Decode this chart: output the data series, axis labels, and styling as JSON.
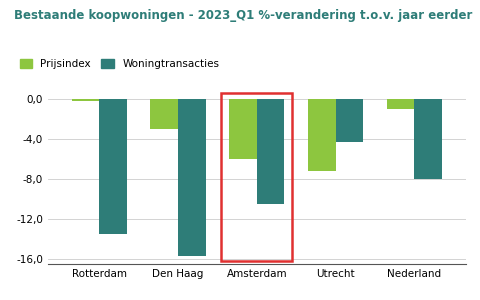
{
  "title": "Bestaande koopwoningen - 2023_Q1 %-verandering t.o.v. jaar eerder",
  "categories": [
    "Rotterdam",
    "Den Haag",
    "Amsterdam",
    "Utrecht",
    "Nederland"
  ],
  "prijsindex": [
    -0.2,
    -3.0,
    -6.0,
    -7.2,
    -1.0
  ],
  "woningtransacties": [
    -13.5,
    -15.7,
    -10.5,
    -4.3,
    -8.0
  ],
  "color_prijsindex": "#8dc63f",
  "color_woningtransacties": "#2e7d78",
  "title_color": "#2e7d78",
  "legend_label_prijs": "Prijsindex",
  "legend_label_trans": "Woningtransacties",
  "ylim": [
    -16.5,
    1.5
  ],
  "yticks": [
    0.0,
    -4.0,
    -8.0,
    -12.0,
    -16.0
  ],
  "highlight_city": "Amsterdam",
  "highlight_color": "#e03030",
  "background_color": "#ffffff",
  "bar_width": 0.35,
  "title_fontsize": 8.5,
  "legend_fontsize": 7.5,
  "tick_fontsize": 7.5
}
